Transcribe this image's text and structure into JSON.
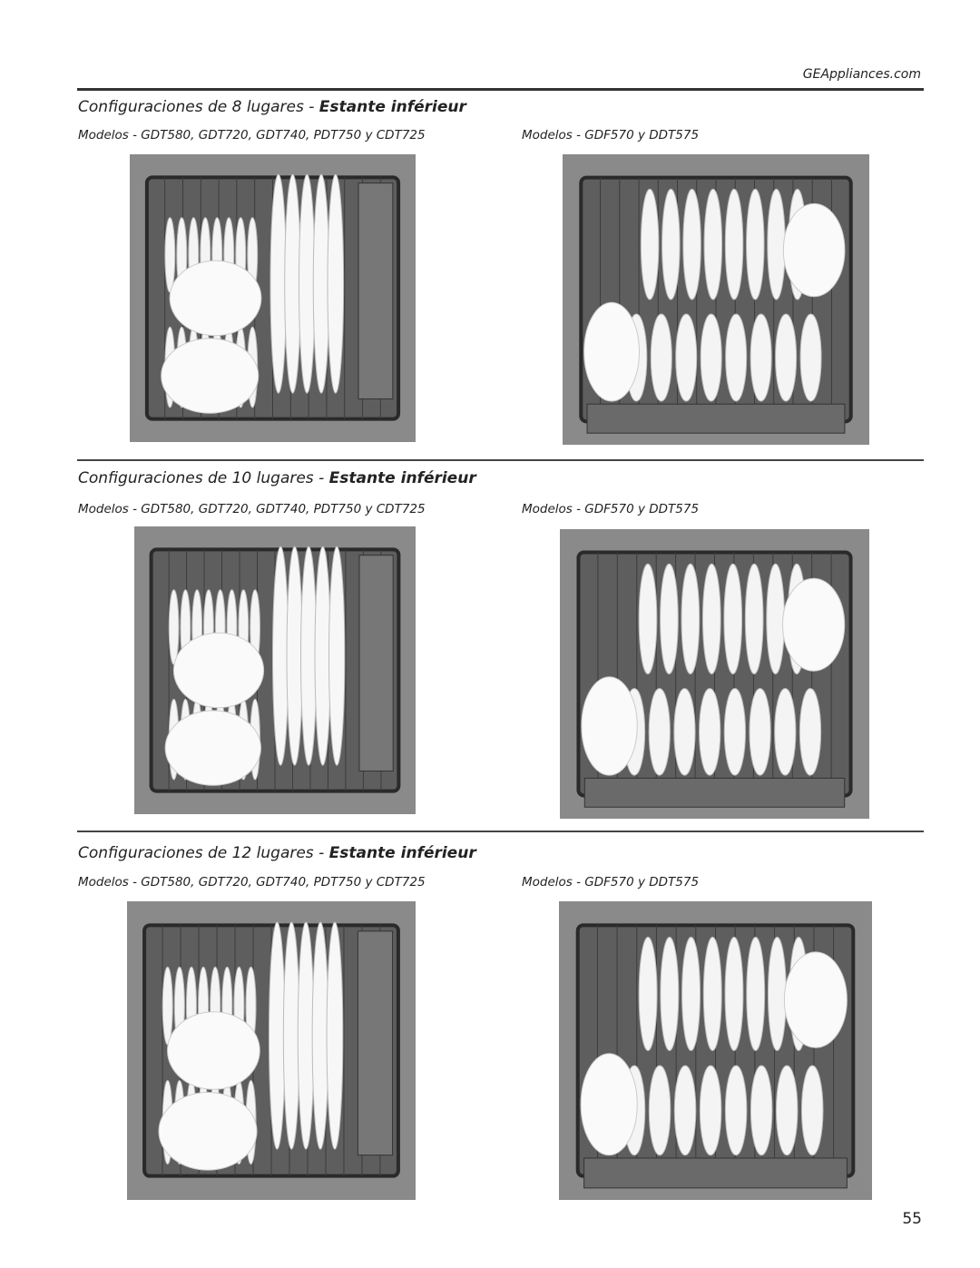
{
  "header": {
    "url": "GEAppliances.com"
  },
  "sections": [
    {
      "title": "Configuraciones de 8 lugares - ",
      "title_bold": "Estante inférieur",
      "left_caption": "Modelos - GDT580, GDT720, GDT740, PDT750 y CDT725",
      "right_caption": "Modelos - GDF570 y DDT575"
    },
    {
      "title": "Configuraciones de 10 lugares - ",
      "title_bold": "Estante inférieur",
      "left_caption": "Modelos - GDT580, GDT720, GDT740, PDT750 y CDT725",
      "right_caption": "Modelos - GDF570 y DDT575"
    },
    {
      "title": "Configuraciones de 12 lugares - ",
      "title_bold": "Estante inférieur",
      "left_caption": "Modelos - GDT580, GDT720, GDT740, PDT750 y CDT725",
      "right_caption": "Modelos - GDF570 y DDT575"
    }
  ],
  "page_number": "55"
}
